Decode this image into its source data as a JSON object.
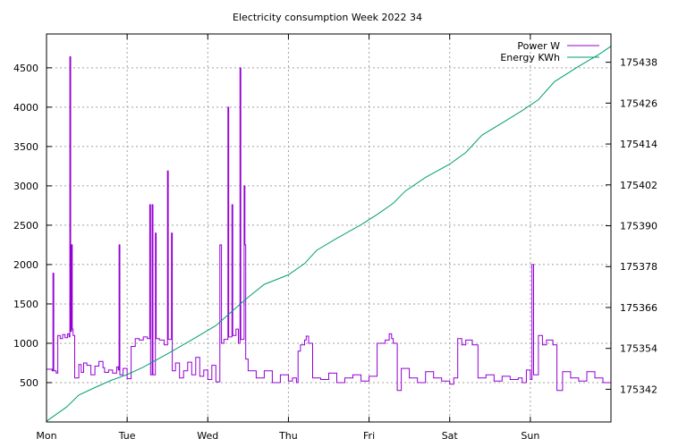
{
  "chart_data": {
    "type": "line",
    "title": "Electricity consumption Week 2022 34",
    "xlabel": "",
    "ylabel": "",
    "y2label": "",
    "grid": true,
    "legend_position": "top-right",
    "x_ticks": [
      "Mon",
      "Tue",
      "Wed",
      "Thu",
      "Fri",
      "Sat",
      "Sun"
    ],
    "x_range_days": [
      0,
      7
    ],
    "y_left": {
      "ticks": [
        500,
        1000,
        1500,
        2000,
        2500,
        3000,
        3500,
        4000,
        4500
      ],
      "range": [
        0,
        4930
      ]
    },
    "y_right": {
      "ticks": [
        175342,
        175354,
        175366,
        175378,
        175390,
        175402,
        175414,
        175426,
        175438
      ],
      "range": [
        175332.4,
        175446.3
      ]
    },
    "series": [
      {
        "name": "Power W",
        "axis": "left",
        "color": "#9400d3",
        "points": [
          [
            0.0,
            670
          ],
          [
            0.07,
            650
          ],
          [
            0.08,
            1890
          ],
          [
            0.09,
            650
          ],
          [
            0.12,
            620
          ],
          [
            0.14,
            1100
          ],
          [
            0.17,
            1060
          ],
          [
            0.2,
            1110
          ],
          [
            0.23,
            1070
          ],
          [
            0.26,
            1120
          ],
          [
            0.28,
            1080
          ],
          [
            0.29,
            4640
          ],
          [
            0.3,
            1150
          ],
          [
            0.31,
            2250
          ],
          [
            0.32,
            1180
          ],
          [
            0.33,
            1100
          ],
          [
            0.35,
            560
          ],
          [
            0.4,
            730
          ],
          [
            0.43,
            630
          ],
          [
            0.46,
            750
          ],
          [
            0.5,
            720
          ],
          [
            0.55,
            600
          ],
          [
            0.6,
            710
          ],
          [
            0.65,
            770
          ],
          [
            0.7,
            690
          ],
          [
            0.72,
            630
          ],
          [
            0.77,
            660
          ],
          [
            0.82,
            620
          ],
          [
            0.87,
            700
          ],
          [
            0.89,
            660
          ],
          [
            0.9,
            2250
          ],
          [
            0.91,
            600
          ],
          [
            0.95,
            680
          ],
          [
            1.0,
            550
          ],
          [
            1.05,
            960
          ],
          [
            1.1,
            1060
          ],
          [
            1.15,
            1040
          ],
          [
            1.2,
            1080
          ],
          [
            1.25,
            1060
          ],
          [
            1.28,
            2760
          ],
          [
            1.29,
            600
          ],
          [
            1.31,
            2760
          ],
          [
            1.32,
            600
          ],
          [
            1.35,
            2400
          ],
          [
            1.36,
            1060
          ],
          [
            1.4,
            1040
          ],
          [
            1.46,
            980
          ],
          [
            1.5,
            3190
          ],
          [
            1.51,
            1050
          ],
          [
            1.55,
            2400
          ],
          [
            1.56,
            650
          ],
          [
            1.6,
            750
          ],
          [
            1.65,
            560
          ],
          [
            1.7,
            650
          ],
          [
            1.75,
            760
          ],
          [
            1.8,
            600
          ],
          [
            1.85,
            820
          ],
          [
            1.9,
            580
          ],
          [
            1.95,
            660
          ],
          [
            2.0,
            540
          ],
          [
            2.05,
            720
          ],
          [
            2.1,
            510
          ],
          [
            2.15,
            2250
          ],
          [
            2.17,
            1000
          ],
          [
            2.2,
            1050
          ],
          [
            2.25,
            4000
          ],
          [
            2.26,
            1080
          ],
          [
            2.3,
            2760
          ],
          [
            2.31,
            1100
          ],
          [
            2.35,
            1180
          ],
          [
            2.38,
            1000
          ],
          [
            2.4,
            4500
          ],
          [
            2.41,
            1050
          ],
          [
            2.45,
            3000
          ],
          [
            2.46,
            2250
          ],
          [
            2.47,
            800
          ],
          [
            2.5,
            650
          ],
          [
            2.6,
            560
          ],
          [
            2.7,
            650
          ],
          [
            2.8,
            500
          ],
          [
            2.9,
            600
          ],
          [
            3.0,
            520
          ],
          [
            3.05,
            560
          ],
          [
            3.1,
            500
          ],
          [
            3.12,
            900
          ],
          [
            3.15,
            980
          ],
          [
            3.2,
            1040
          ],
          [
            3.22,
            1090
          ],
          [
            3.25,
            1000
          ],
          [
            3.3,
            560
          ],
          [
            3.4,
            540
          ],
          [
            3.5,
            620
          ],
          [
            3.6,
            500
          ],
          [
            3.7,
            560
          ],
          [
            3.8,
            600
          ],
          [
            3.9,
            520
          ],
          [
            4.0,
            580
          ],
          [
            4.1,
            1000
          ],
          [
            4.2,
            1040
          ],
          [
            4.25,
            1120
          ],
          [
            4.28,
            1060
          ],
          [
            4.3,
            1000
          ],
          [
            4.35,
            400
          ],
          [
            4.4,
            680
          ],
          [
            4.5,
            560
          ],
          [
            4.6,
            500
          ],
          [
            4.7,
            640
          ],
          [
            4.8,
            560
          ],
          [
            4.9,
            520
          ],
          [
            5.0,
            480
          ],
          [
            5.05,
            560
          ],
          [
            5.1,
            1060
          ],
          [
            5.15,
            980
          ],
          [
            5.2,
            1040
          ],
          [
            5.28,
            980
          ],
          [
            5.35,
            560
          ],
          [
            5.45,
            600
          ],
          [
            5.55,
            520
          ],
          [
            5.65,
            580
          ],
          [
            5.75,
            540
          ],
          [
            5.85,
            560
          ],
          [
            5.9,
            500
          ],
          [
            5.95,
            660
          ],
          [
            6.0,
            540
          ],
          [
            6.02,
            2000
          ],
          [
            6.04,
            600
          ],
          [
            6.1,
            1100
          ],
          [
            6.15,
            980
          ],
          [
            6.2,
            1040
          ],
          [
            6.28,
            980
          ],
          [
            6.33,
            400
          ],
          [
            6.4,
            640
          ],
          [
            6.5,
            560
          ],
          [
            6.6,
            520
          ],
          [
            6.7,
            640
          ],
          [
            6.8,
            560
          ],
          [
            6.9,
            500
          ],
          [
            7.0,
            620
          ]
        ]
      },
      {
        "name": "Energy KWh",
        "axis": "right",
        "color": "#009e73",
        "points": [
          [
            0.0,
            175332.6
          ],
          [
            0.25,
            175336.8
          ],
          [
            0.4,
            175340.3
          ],
          [
            0.6,
            175342.5
          ],
          [
            0.8,
            175344.6
          ],
          [
            1.0,
            175346.3
          ],
          [
            1.2,
            175348.5
          ],
          [
            1.5,
            175352.4
          ],
          [
            1.8,
            175356.5
          ],
          [
            2.1,
            175360.7
          ],
          [
            2.3,
            175364.9
          ],
          [
            2.5,
            175369.0
          ],
          [
            2.7,
            175372.8
          ],
          [
            3.0,
            175375.6
          ],
          [
            3.2,
            175378.9
          ],
          [
            3.35,
            175382.8
          ],
          [
            3.6,
            175386.3
          ],
          [
            3.9,
            175390.3
          ],
          [
            4.1,
            175393.3
          ],
          [
            4.3,
            175396.6
          ],
          [
            4.45,
            175400.2
          ],
          [
            4.7,
            175404.2
          ],
          [
            5.0,
            175408.1
          ],
          [
            5.2,
            175411.5
          ],
          [
            5.4,
            175416.6
          ],
          [
            5.7,
            175420.9
          ],
          [
            5.9,
            175423.8
          ],
          [
            6.1,
            175427.0
          ],
          [
            6.3,
            175432.3
          ],
          [
            6.6,
            175436.8
          ],
          [
            6.85,
            175440.3
          ],
          [
            7.0,
            175442.7
          ]
        ]
      }
    ]
  }
}
